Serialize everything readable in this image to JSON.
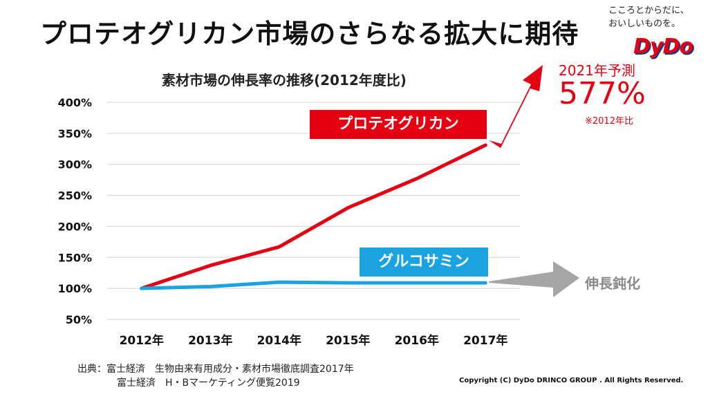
{
  "slide": {
    "title": "プロテオグリカン市場のさらなる拡大に期待",
    "tagline_line1": "こころとからだに、",
    "tagline_line2": "おいしいものを。",
    "logo_text": "DyDo"
  },
  "annotations": {
    "forecast_label": "2021年予測",
    "forecast_value": "577%",
    "forecast_note": "※2012年比",
    "proteoglycan_tag": "プロテオグリカン",
    "glucosamine_tag": "グルコサミン",
    "slowdown_label": "伸長鈍化"
  },
  "footer": {
    "source_line1": "出典：富士経済　生物由来有用成分・素材市場徹底調査2017年",
    "source_line2": "富士経済　H・Bマーケティング便覧2019",
    "copyright": "Copyright (C) DyDo DRINCO GROUP . All Rights Reserved."
  },
  "colors": {
    "proteoglycan": "#e50012",
    "glucosamine": "#1aa3e0",
    "slowdown_arrow": "#a6a6a6",
    "gridline": "#d0d0d0"
  },
  "chart_data": {
    "type": "line",
    "title": "素材市場の伸長率の推移(2012年度比)",
    "categories": [
      "2012年",
      "2013年",
      "2014年",
      "2015年",
      "2016年",
      "2017年"
    ],
    "y_tick_labels": [
      "50%",
      "100%",
      "150%",
      "200%",
      "250%",
      "300%",
      "350%",
      "400%"
    ],
    "ylim": [
      50,
      400
    ],
    "y_unit": "%",
    "grid": true,
    "series": [
      {
        "name": "プロテオグリカン",
        "values": [
          100,
          137,
          167,
          230,
          277,
          331
        ]
      },
      {
        "name": "グルコサミン",
        "values": [
          100,
          103,
          110,
          109,
          109,
          109
        ]
      }
    ]
  }
}
